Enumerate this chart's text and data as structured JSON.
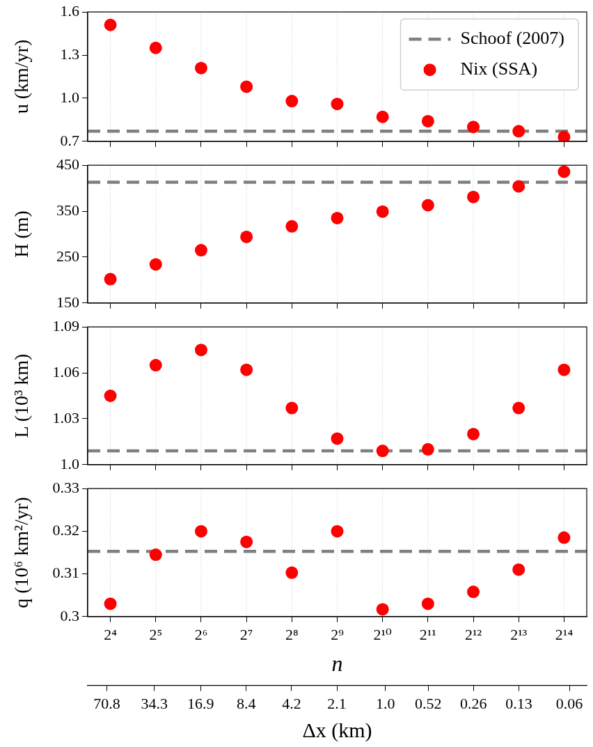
{
  "chart_data": [
    {
      "type": "scatter",
      "ylabel": "u (km/yr)",
      "categories": [
        null,
        null,
        null,
        null,
        null,
        null,
        null,
        null,
        null,
        null,
        null
      ],
      "ylim": [
        0.7,
        1.6
      ],
      "yticks": [
        {
          "value": 0.7,
          "label": "0.7"
        },
        {
          "value": 1.0,
          "label": "1.0"
        },
        {
          "value": 1.3,
          "label": "1.3"
        },
        {
          "value": 1.6,
          "label": "1.6"
        }
      ],
      "tick_labels": "y",
      "grid": "x",
      "marker": "circle",
      "legend": "top right",
      "series": [
        {
          "name": "Nix (SSA)",
          "color": "#ff0000",
          "values": [
            1.51,
            1.35,
            1.21,
            1.08,
            0.98,
            0.96,
            0.87,
            0.84,
            0.8,
            0.77,
            0.73
          ]
        }
      ],
      "ref_lines": [
        {
          "axis": "y",
          "value": 0.77,
          "label": "Schoof (2007)",
          "color": "#808080",
          "line_style": "dashed"
        }
      ]
    },
    {
      "type": "scatter",
      "ylabel": "H (m)",
      "categories": [
        null,
        null,
        null,
        null,
        null,
        null,
        null,
        null,
        null,
        null,
        null
      ],
      "ylim": [
        150,
        450
      ],
      "yticks": [
        150,
        250,
        350,
        450
      ],
      "tick_labels": "y",
      "grid": "x",
      "marker": "circle",
      "series": [
        {
          "color": "#ff0000",
          "values": [
            202,
            234,
            265,
            294,
            317,
            335,
            349,
            363,
            381,
            404,
            436
          ]
        }
      ],
      "ref_lines": [
        {
          "axis": "y",
          "value": 413,
          "color": "#808080",
          "line_style": "dashed"
        }
      ]
    },
    {
      "type": "scatter",
      "ylabel": "L (10³ km)",
      "categories": [
        null,
        null,
        null,
        null,
        null,
        null,
        null,
        null,
        null,
        null,
        null
      ],
      "ylim": [
        1.0,
        1.09
      ],
      "yticks": [
        {
          "value": 1.0,
          "label": "1.0"
        },
        1.03,
        1.06,
        1.09
      ],
      "tick_labels": "y",
      "grid": "x",
      "marker": "circle",
      "series": [
        {
          "color": "#ff0000",
          "values": [
            1.045,
            1.065,
            1.075,
            1.062,
            1.037,
            1.017,
            1.009,
            1.01,
            1.02,
            1.037,
            1.062
          ]
        }
      ],
      "ref_lines": [
        {
          "axis": "y",
          "value": 1.009,
          "color": "#808080",
          "line_style": "dashed"
        }
      ]
    },
    {
      "type": "scatter",
      "ylabel": "q (10⁶ km²/yr)",
      "xlabel": "n",
      "x2label": "Δx (km)",
      "categories": [
        "2⁴",
        "2⁵",
        "2⁶",
        "2⁷",
        "2⁸",
        "2⁹",
        "2¹⁰",
        "2¹¹",
        "2¹²",
        "2¹³",
        "2¹⁴"
      ],
      "log": "x2",
      "x2lim": [
        95,
        0.046
      ],
      "x2ticks": [
        70.8,
        34.3,
        16.9,
        8.4,
        4.2,
        2.1,
        {
          "value": 1.0,
          "label": "1.0"
        },
        0.52,
        0.26,
        0.13,
        0.06
      ],
      "ylim": [
        0.3,
        0.33
      ],
      "yticks": [
        {
          "value": 0.3,
          "label": "0.3"
        },
        0.31,
        0.32,
        0.33
      ],
      "grid": "x",
      "marker": "circle",
      "series": [
        {
          "color": "#ff0000",
          "values": [
            0.303,
            0.3145,
            0.32,
            0.3175,
            0.3103,
            0.32,
            0.3017,
            0.303,
            0.3058,
            0.311,
            0.3185
          ]
        }
      ],
      "ref_lines": [
        {
          "axis": "y",
          "value": 0.3153,
          "color": "#808080",
          "line_style": "dashed"
        }
      ]
    }
  ]
}
